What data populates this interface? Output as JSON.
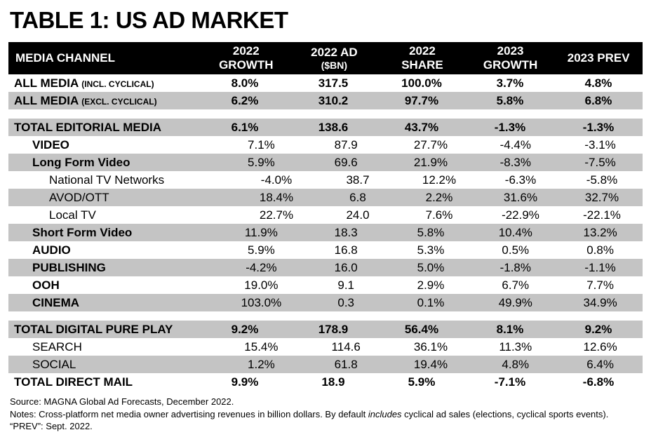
{
  "title": "TABLE 1: US AD MARKET",
  "chart_data": {
    "type": "table",
    "title": "TABLE 1: US AD MARKET",
    "columns": [
      {
        "lines": [
          "MEDIA CHANNEL"
        ]
      },
      {
        "lines": [
          "2022",
          "GROWTH"
        ]
      },
      {
        "lines": [
          "2022 AD",
          "($BN)"
        ]
      },
      {
        "lines": [
          "2022",
          "SHARE"
        ]
      },
      {
        "lines": [
          "2023",
          "GROWTH"
        ]
      },
      {
        "lines": [
          "2023 PREV"
        ]
      }
    ],
    "rows": [
      {
        "label": "ALL MEDIA",
        "suffix": "(INCL. CYCLICAL)",
        "indent": 0,
        "bold": true,
        "values_bold": true,
        "shaded": false,
        "values": [
          "8.0%",
          "317.5",
          "100.0%",
          "3.7%",
          "4.8%"
        ]
      },
      {
        "label": "ALL MEDIA",
        "suffix": "(EXCL. CYCLICAL)",
        "indent": 0,
        "bold": true,
        "values_bold": true,
        "shaded": true,
        "values": [
          "6.2%",
          "310.2",
          "97.7%",
          "5.8%",
          "6.8%"
        ]
      },
      {
        "spacer": true
      },
      {
        "label": "TOTAL EDITORIAL MEDIA",
        "indent": 0,
        "bold": true,
        "values_bold": true,
        "shaded": true,
        "values": [
          "6.1%",
          "138.6",
          "43.7%",
          "-1.3%",
          "-1.3%"
        ]
      },
      {
        "label": "VIDEO",
        "indent": 1,
        "bold": true,
        "values_bold": false,
        "shaded": false,
        "values": [
          "7.1%",
          "87.9",
          "27.7%",
          "-4.4%",
          "-3.1%"
        ]
      },
      {
        "label": "Long Form Video",
        "indent": 1,
        "bold": true,
        "values_bold": false,
        "shaded": true,
        "values": [
          "5.9%",
          "69.6",
          "21.9%",
          "-8.3%",
          "-7.5%"
        ]
      },
      {
        "label": "National TV Networks",
        "indent": 2,
        "bold": false,
        "values_bold": false,
        "shaded": false,
        "values": [
          "-4.0%",
          "38.7",
          "12.2%",
          "-6.3%",
          "-5.8%"
        ]
      },
      {
        "label": "AVOD/OTT",
        "indent": 2,
        "bold": false,
        "values_bold": false,
        "shaded": true,
        "values": [
          "18.4%",
          "6.8",
          "2.2%",
          "31.6%",
          "32.7%"
        ]
      },
      {
        "label": "Local TV",
        "indent": 2,
        "bold": false,
        "values_bold": false,
        "shaded": false,
        "values": [
          "22.7%",
          "24.0",
          "7.6%",
          "-22.9%",
          "-22.1%"
        ]
      },
      {
        "label": "Short Form Video",
        "indent": 1,
        "bold": true,
        "values_bold": false,
        "shaded": true,
        "values": [
          "11.9%",
          "18.3",
          "5.8%",
          "10.4%",
          "13.2%"
        ]
      },
      {
        "label": "AUDIO",
        "indent": 1,
        "bold": true,
        "values_bold": false,
        "shaded": false,
        "values": [
          "5.9%",
          "16.8",
          "5.3%",
          "0.5%",
          "0.8%"
        ]
      },
      {
        "label": "PUBLISHING",
        "indent": 1,
        "bold": true,
        "values_bold": false,
        "shaded": true,
        "values": [
          "-4.2%",
          "16.0",
          "5.0%",
          "-1.8%",
          "-1.1%"
        ]
      },
      {
        "label": "OOH",
        "indent": 1,
        "bold": true,
        "values_bold": false,
        "shaded": false,
        "values": [
          "19.0%",
          "9.1",
          "2.9%",
          "6.7%",
          "7.7%"
        ]
      },
      {
        "label": "CINEMA",
        "indent": 1,
        "bold": true,
        "values_bold": false,
        "shaded": true,
        "values": [
          "103.0%",
          "0.3",
          "0.1%",
          "49.9%",
          "34.9%"
        ]
      },
      {
        "spacer": true
      },
      {
        "label": "TOTAL DIGITAL PURE PLAY",
        "indent": 0,
        "bold": true,
        "values_bold": true,
        "shaded": true,
        "values": [
          "9.2%",
          "178.9",
          "56.4%",
          "8.1%",
          "9.2%"
        ]
      },
      {
        "label": "SEARCH",
        "indent": 1,
        "bold": false,
        "values_bold": false,
        "shaded": false,
        "values": [
          "15.4%",
          "114.6",
          "36.1%",
          "11.3%",
          "12.6%"
        ]
      },
      {
        "label": "SOCIAL",
        "indent": 1,
        "bold": false,
        "values_bold": false,
        "shaded": true,
        "values": [
          "1.2%",
          "61.8",
          "19.4%",
          "4.8%",
          "6.4%"
        ]
      },
      {
        "label": "TOTAL DIRECT MAIL",
        "indent": 0,
        "bold": true,
        "values_bold": true,
        "shaded": false,
        "values": [
          "9.9%",
          "18.9",
          "5.9%",
          "-7.1%",
          "-6.8%"
        ]
      }
    ]
  },
  "footnotes": {
    "source": "Source: MAGNA Global Ad Forecasts, December 2022.",
    "notes_part1": "Notes: Cross-platform net media owner advertising revenues in billion dollars. By default ",
    "notes_italic": "includes",
    "notes_part2": " cyclical ad sales (elections, cyclical sports events).",
    "prev": "“PREV”: Sept. 2022."
  },
  "colors": {
    "header_bg": "#000000",
    "header_text": "#ffffff",
    "row_shaded_bg": "#c4c4c4"
  }
}
